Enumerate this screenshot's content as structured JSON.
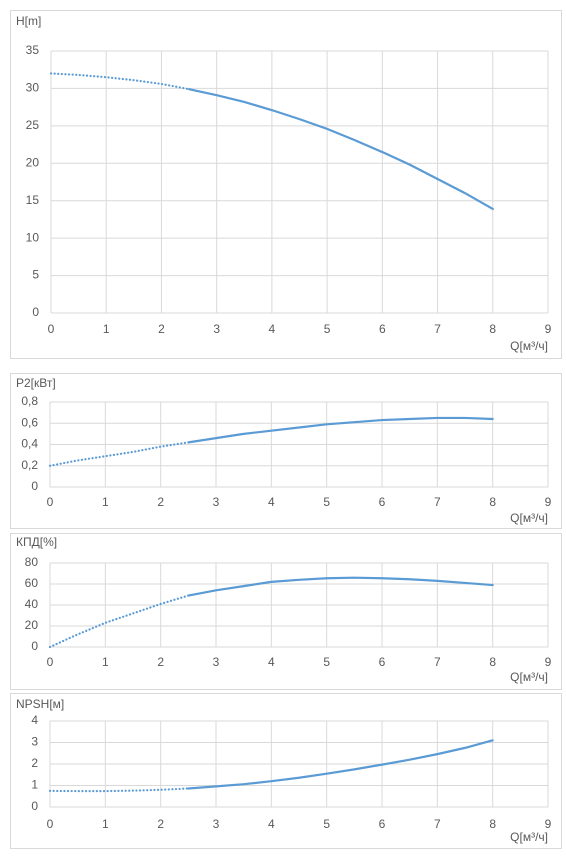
{
  "chart_data": [
    {
      "type": "line",
      "y_label": "H[m]",
      "x_label": "Q[м³/ч]",
      "x": [
        0,
        0.5,
        1,
        1.5,
        2,
        2.5,
        3,
        3.5,
        4,
        4.5,
        5,
        5.5,
        6,
        6.5,
        7,
        7.5,
        8
      ],
      "series": [
        {
          "color": "#5b9bd5",
          "values": [
            32,
            31.8,
            31.5,
            31.1,
            30.6,
            29.9,
            29.1,
            28.2,
            27.1,
            25.9,
            24.6,
            23.1,
            21.5,
            19.8,
            17.9,
            16,
            13.9
          ]
        }
      ],
      "dotted_below_x": 2.5,
      "grid": true,
      "xlim": [
        0,
        9
      ],
      "xticks": [
        0,
        1,
        2,
        3,
        4,
        5,
        6,
        7,
        8,
        9
      ],
      "ylim": [
        0,
        35
      ],
      "yticks": [
        0,
        5,
        10,
        15,
        20,
        25,
        30,
        35
      ]
    },
    {
      "type": "line",
      "y_label": "P2[кВт]",
      "x_label": "Q[м³/ч]",
      "x": [
        0,
        0.5,
        1,
        1.5,
        2,
        2.5,
        3,
        3.5,
        4,
        4.5,
        5,
        5.5,
        6,
        6.5,
        7,
        7.5,
        8
      ],
      "series": [
        {
          "color": "#5b9bd5",
          "values": [
            0.2,
            0.25,
            0.29,
            0.33,
            0.38,
            0.42,
            0.46,
            0.5,
            0.53,
            0.56,
            0.59,
            0.61,
            0.63,
            0.64,
            0.65,
            0.65,
            0.64
          ]
        }
      ],
      "dotted_below_x": 2.5,
      "grid": true,
      "xlim": [
        0,
        9
      ],
      "xticks": [
        0,
        1,
        2,
        3,
        4,
        5,
        6,
        7,
        8,
        9
      ],
      "ylim": [
        0,
        0.8
      ],
      "yticks": [
        0,
        {
          "value": 0.2,
          "label": "0,2"
        },
        {
          "value": 0.4,
          "label": "0,4"
        },
        {
          "value": 0.6,
          "label": "0,6"
        },
        {
          "value": 0.8,
          "label": "0,8"
        }
      ]
    },
    {
      "type": "line",
      "y_label": "КПД[%]",
      "x_label": "Q[м³/ч]",
      "x": [
        0,
        0.5,
        1,
        1.5,
        2,
        2.5,
        3,
        3.5,
        4,
        4.5,
        5,
        5.5,
        6,
        6.5,
        7,
        7.5,
        8
      ],
      "series": [
        {
          "color": "#5b9bd5",
          "values": [
            0,
            12,
            23,
            32,
            41,
            49,
            54,
            58,
            62,
            64,
            65.5,
            66,
            65.5,
            64.5,
            63,
            61,
            59
          ]
        }
      ],
      "dotted_below_x": 2.5,
      "grid": true,
      "xlim": [
        0,
        9
      ],
      "xticks": [
        0,
        1,
        2,
        3,
        4,
        5,
        6,
        7,
        8,
        9
      ],
      "ylim": [
        0,
        80
      ],
      "yticks": [
        0,
        20,
        40,
        60,
        80
      ]
    },
    {
      "type": "line",
      "y_label": "NPSH[м]",
      "x_label": "Q[м³/ч]",
      "x": [
        0,
        0.5,
        1,
        1.5,
        2,
        2.5,
        3,
        3.5,
        4,
        4.5,
        5,
        5.5,
        6,
        6.5,
        7,
        7.5,
        8
      ],
      "series": [
        {
          "color": "#5b9bd5",
          "values": [
            0.75,
            0.74,
            0.74,
            0.76,
            0.8,
            0.86,
            0.96,
            1.06,
            1.2,
            1.36,
            1.55,
            1.75,
            1.97,
            2.2,
            2.46,
            2.75,
            3.1
          ]
        }
      ],
      "dotted_below_x": 2.5,
      "grid": true,
      "xlim": [
        0,
        9
      ],
      "xticks": [
        0,
        1,
        2,
        3,
        4,
        5,
        6,
        7,
        8,
        9
      ],
      "ylim": [
        0,
        4
      ],
      "yticks": [
        0,
        1,
        2,
        3,
        4
      ]
    }
  ]
}
